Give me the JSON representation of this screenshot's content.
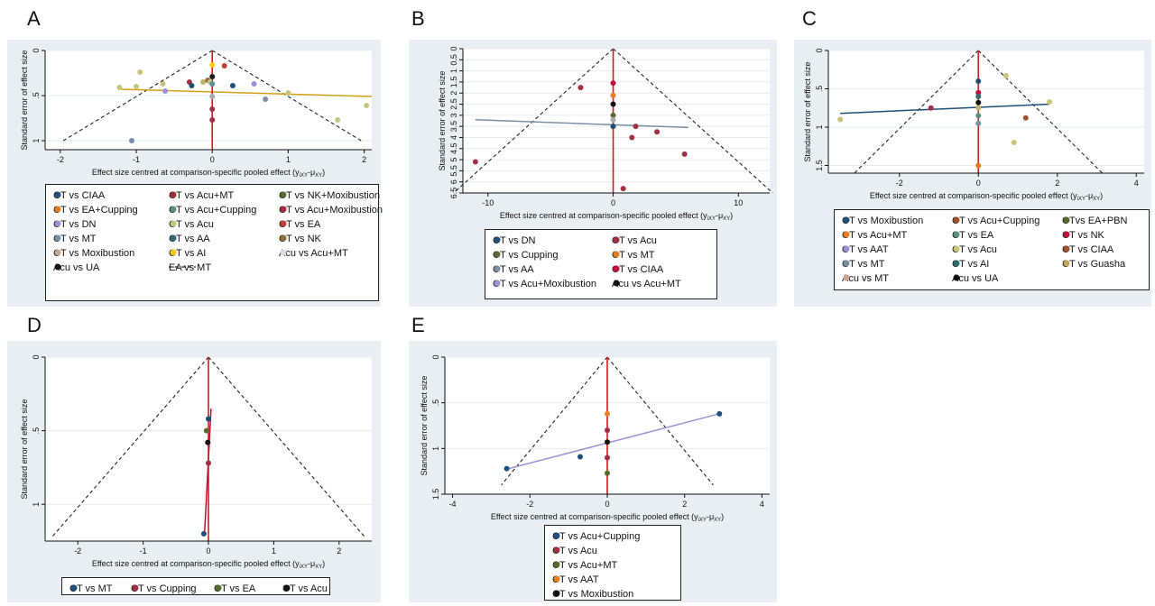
{
  "panel_labels": [
    "A",
    "B",
    "C",
    "D",
    "E"
  ],
  "chart_data": [
    {
      "panel": "A",
      "type": "scatter",
      "xlabel": "Effect size centred at comparison-specific pooled effect (y",
      "xlabel_sub": "iXY",
      "xlabel_mid": "-μ",
      "xlabel_sub2": "XY",
      "xlabel_end": ")",
      "ylabel": "Standard error of effect size",
      "xlim": [
        -2.2,
        2.1
      ],
      "ylim": [
        0,
        1.1
      ],
      "xticks": [
        -2,
        -1,
        0,
        1,
        2
      ],
      "xtick_labels": [
        "-2",
        "-1",
        "0",
        "1",
        "2"
      ],
      "yticks": [
        0,
        0.5,
        1
      ],
      "ytick_labels": [
        "0",
        ".5",
        "1"
      ],
      "funnel_se": 1.0,
      "funnel_x": 1.96,
      "regression_line": {
        "color": "#d4a017",
        "x": [
          -1.2,
          2.1
        ],
        "y": [
          0.43,
          0.51
        ]
      },
      "points": [
        {
          "x": -1.22,
          "y": 0.41,
          "c": "#c8c47a"
        },
        {
          "x": -1.0,
          "y": 0.4,
          "c": "#c8c47a"
        },
        {
          "x": -0.95,
          "y": 0.24,
          "c": "#c8c47a"
        },
        {
          "x": -0.65,
          "y": 0.37,
          "c": "#c8c47a"
        },
        {
          "x": -0.62,
          "y": 0.45,
          "c": "#9f8fd6"
        },
        {
          "x": -0.3,
          "y": 0.35,
          "c": "#a03042"
        },
        {
          "x": -0.27,
          "y": 0.39,
          "c": "#1f4e79"
        },
        {
          "x": -0.12,
          "y": 0.35,
          "c": "#bfb468"
        },
        {
          "x": -0.06,
          "y": 0.33,
          "c": "#8c6d3f"
        },
        {
          "x": -0.03,
          "y": 0.35,
          "c": "#c8c47a"
        },
        {
          "x": 0.0,
          "y": 0.16,
          "c": "#f6c90e"
        },
        {
          "x": 0.0,
          "y": 0.29,
          "c": "#1a1a1a"
        },
        {
          "x": 0.0,
          "y": 0.37,
          "c": "#5a8f9a"
        },
        {
          "x": 0.0,
          "y": 0.51,
          "c": "#aaaaaa"
        },
        {
          "x": 0.0,
          "y": 0.65,
          "c": "#a03042"
        },
        {
          "x": 0.0,
          "y": 0.77,
          "c": "#a03042"
        },
        {
          "x": 0.16,
          "y": 0.17,
          "c": "#c0403a"
        },
        {
          "x": 0.27,
          "y": 0.39,
          "c": "#1f4e79"
        },
        {
          "x": 0.55,
          "y": 0.37,
          "c": "#9f8fd6"
        },
        {
          "x": 0.7,
          "y": 0.54,
          "c": "#7a8fa6"
        },
        {
          "x": 1.0,
          "y": 0.47,
          "c": "#c8c47a"
        },
        {
          "x": 1.65,
          "y": 0.77,
          "c": "#c8c47a"
        },
        {
          "x": 2.03,
          "y": 0.61,
          "c": "#c8c47a"
        },
        {
          "x": -1.06,
          "y": 1.0,
          "c": "#7a8fa6"
        }
      ],
      "legend_cols": 3,
      "legend": [
        {
          "label": "CT vs CIAA",
          "c": "#1f4e79"
        },
        {
          "label": "CT vs Acu+MT",
          "c": "#a03042"
        },
        {
          "label": "CT vs NK+Moxibustion",
          "c": "#556b2f"
        },
        {
          "label": "CT vs EA+Cupping",
          "c": "#e67e22"
        },
        {
          "label": "CT vs Acu+Cupping",
          "c": "#5a8f7a"
        },
        {
          "label": "CT vs Acu+Moxibustion",
          "c": "#a03042"
        },
        {
          "label": "CT vs DN",
          "c": "#9f8fd6"
        },
        {
          "label": "CT vs Acu",
          "c": "#c8c47a"
        },
        {
          "label": "CT vs EA",
          "c": "#c0403a"
        },
        {
          "label": "CT vs MT",
          "c": "#7a8fa6"
        },
        {
          "label": "CT vs AA",
          "c": "#2e6b6b"
        },
        {
          "label": "CT vs NK",
          "c": "#8c6d3f"
        },
        {
          "label": "CT vs Moxibustion",
          "c": "#c9a49a"
        },
        {
          "label": "CT vs AI",
          "c": "#f6c90e"
        },
        {
          "label": "Acu vs Acu+MT",
          "c": "#d6dde6"
        },
        {
          "label": "Acu vs UA",
          "c": "#111111"
        },
        {
          "label": "EA vs MT",
          "c": "#222222",
          "dash": true
        }
      ]
    },
    {
      "panel": "B",
      "type": "scatter",
      "xlabel": "Effect size centred at comparison-specific pooled effect (y",
      "xlabel_sub": "iXY",
      "xlabel_mid": "-μ",
      "xlabel_sub2": "XY",
      "xlabel_end": ")",
      "ylabel": "Standard error of effect size",
      "xlim": [
        -12,
        12.5
      ],
      "ylim": [
        0,
        6.5
      ],
      "xticks": [
        -10,
        0,
        10
      ],
      "xtick_labels": [
        "-10",
        "0",
        "10"
      ],
      "yticks": [
        0,
        0.5,
        1,
        1.5,
        2,
        2.5,
        3,
        3.5,
        4,
        4.5,
        5,
        5.5,
        6,
        6.5
      ],
      "ytick_labels": [
        "0",
        "0.5",
        "1",
        "1.5",
        "2",
        "2.5",
        "3",
        "3.5",
        "4",
        "4.5",
        "5",
        "5.5",
        "6",
        "6.5"
      ],
      "funnel_se": 6.5,
      "funnel_x": 12.74,
      "regression_line": {
        "color": "#7a8fa6",
        "x": [
          -11,
          6
        ],
        "y": [
          3.2,
          3.55
        ]
      },
      "points": [
        {
          "x": -2.6,
          "y": 1.75,
          "c": "#a03042"
        },
        {
          "x": 0.0,
          "y": 1.55,
          "c": "#c0103a"
        },
        {
          "x": 0.0,
          "y": 2.1,
          "c": "#e67e22"
        },
        {
          "x": 0.0,
          "y": 2.5,
          "c": "#111111"
        },
        {
          "x": 0.0,
          "y": 3.0,
          "c": "#556b2f"
        },
        {
          "x": 0.0,
          "y": 3.2,
          "c": "#aaaaaa"
        },
        {
          "x": 0.0,
          "y": 3.5,
          "c": "#1f4e79"
        },
        {
          "x": 1.5,
          "y": 4.0,
          "c": "#a03042"
        },
        {
          "x": 1.8,
          "y": 3.5,
          "c": "#a03042"
        },
        {
          "x": 3.5,
          "y": 3.75,
          "c": "#a03042"
        },
        {
          "x": 5.7,
          "y": 4.75,
          "c": "#a03042"
        },
        {
          "x": -11.0,
          "y": 5.1,
          "c": "#a03042"
        },
        {
          "x": 0.8,
          "y": 6.3,
          "c": "#a03042"
        }
      ],
      "legend_cols": 2,
      "legend": [
        {
          "label": "CT vs DN",
          "c": "#1f4e79"
        },
        {
          "label": "CT vs Acu",
          "c": "#a03042"
        },
        {
          "label": "CT vs Cupping",
          "c": "#556b2f"
        },
        {
          "label": "CT vs MT",
          "c": "#e67e22"
        },
        {
          "label": "CT vs AA",
          "c": "#7a8fa6"
        },
        {
          "label": "CT vs CIAA",
          "c": "#c0103a"
        },
        {
          "label": "CT vs Acu+Moxibustion",
          "c": "#9f8fd6"
        },
        {
          "label": "Acu vs Acu+MT",
          "c": "#111111"
        }
      ]
    },
    {
      "panel": "C",
      "type": "scatter",
      "xlabel": "Effect size centred at comparison-specific pooled effect (y",
      "xlabel_sub": "iXY",
      "xlabel_mid": "-μ",
      "xlabel_sub2": "XY",
      "xlabel_end": ")",
      "ylabel": "Standard error of effect size",
      "xlim": [
        -3.8,
        4.2
      ],
      "ylim": [
        0,
        1.6
      ],
      "xticks": [
        -2,
        0,
        2,
        4
      ],
      "xtick_labels": [
        "-2",
        "0",
        "2",
        "4"
      ],
      "yticks": [
        0,
        0.5,
        1,
        1.5
      ],
      "ytick_labels": [
        "0",
        ".5",
        "1",
        "1.5"
      ],
      "funnel_se": 1.6,
      "funnel_x": 3.14,
      "regression_line": {
        "color": "#1f4e79",
        "x": [
          -3.5,
          1.8
        ],
        "y": [
          0.82,
          0.7
        ]
      },
      "points": [
        {
          "x": -3.5,
          "y": 0.9,
          "c": "#c8c47a"
        },
        {
          "x": -1.2,
          "y": 0.75,
          "c": "#a03042"
        },
        {
          "x": 0.0,
          "y": 0.4,
          "c": "#1f4e79"
        },
        {
          "x": 0.0,
          "y": 0.55,
          "c": "#c0103a"
        },
        {
          "x": 0.0,
          "y": 0.6,
          "c": "#2e6b6b"
        },
        {
          "x": 0.0,
          "y": 0.68,
          "c": "#111111"
        },
        {
          "x": 0.0,
          "y": 0.75,
          "c": "#bfb468"
        },
        {
          "x": 0.0,
          "y": 0.85,
          "c": "#5a8f7a"
        },
        {
          "x": 0.0,
          "y": 0.95,
          "c": "#7a8fa6"
        },
        {
          "x": 0.0,
          "y": 1.5,
          "c": "#e67e22"
        },
        {
          "x": 0.7,
          "y": 0.33,
          "c": "#c8c47a"
        },
        {
          "x": 0.9,
          "y": 1.2,
          "c": "#c8c47a"
        },
        {
          "x": 1.2,
          "y": 0.88,
          "c": "#a0522d"
        },
        {
          "x": 1.8,
          "y": 0.67,
          "c": "#c8c47a"
        }
      ],
      "legend_cols": 3,
      "legend": [
        {
          "label": "CT vs Moxibustion",
          "c": "#1f4e79"
        },
        {
          "label": "CT vs Acu+Cupping",
          "c": "#a0522d"
        },
        {
          "label": "CTvs EA+PBN",
          "c": "#556b2f"
        },
        {
          "label": "CT vs Acu+MT",
          "c": "#e67e22"
        },
        {
          "label": "CT vs EA",
          "c": "#5a8f7a"
        },
        {
          "label": "CT vs NK",
          "c": "#c0103a"
        },
        {
          "label": "CT vs AAT",
          "c": "#9f8fd6"
        },
        {
          "label": "CT vs Acu",
          "c": "#c8c47a"
        },
        {
          "label": "CT vs CIAA",
          "c": "#a0522d"
        },
        {
          "label": "CT vs MT",
          "c": "#7a8fa6"
        },
        {
          "label": "CT vs AI",
          "c": "#2e6b6b"
        },
        {
          "label": "CT vs Guasha",
          "c": "#bfa55a"
        },
        {
          "label": "Acu vs MT",
          "c": "#c9a49a"
        },
        {
          "label": "Acu vs UA",
          "c": "#111111"
        }
      ]
    },
    {
      "panel": "D",
      "type": "scatter",
      "xlabel": "Effect size centred at comparison-specific pooled effect (y",
      "xlabel_sub": "iXY",
      "xlabel_mid": "-μ",
      "xlabel_sub2": "XY",
      "xlabel_end": ")",
      "ylabel": "Standard error of effect size",
      "xlim": [
        -2.5,
        2.5
      ],
      "ylim": [
        0,
        1.25
      ],
      "xticks": [
        -2,
        -1,
        0,
        1,
        2
      ],
      "xtick_labels": [
        "-2",
        "-1",
        "0",
        "1",
        "2"
      ],
      "yticks": [
        0,
        0.5,
        1
      ],
      "ytick_labels": [
        "0",
        ".5",
        "1"
      ],
      "funnel_se": 1.22,
      "funnel_x": 2.39,
      "regression_line": {
        "color": "#c0103a",
        "x": [
          -0.06,
          0.04
        ],
        "y": [
          1.2,
          0.35
        ]
      },
      "points": [
        {
          "x": 0.0,
          "y": 0.42,
          "c": "#1f4e79"
        },
        {
          "x": -0.03,
          "y": 0.5,
          "c": "#556b2f"
        },
        {
          "x": -0.01,
          "y": 0.58,
          "c": "#111111"
        },
        {
          "x": 0.0,
          "y": 0.72,
          "c": "#a03042"
        },
        {
          "x": -0.07,
          "y": 1.2,
          "c": "#1f4e79"
        }
      ],
      "legend_cols": 4,
      "legend": [
        {
          "label": "CT vs MT",
          "c": "#1f4e79"
        },
        {
          "label": "CT vs Cupping",
          "c": "#a03042"
        },
        {
          "label": "CT vs EA",
          "c": "#556b2f"
        },
        {
          "label": "CT vs Acu",
          "c": "#111111"
        }
      ]
    },
    {
      "panel": "E",
      "type": "scatter",
      "xlabel": "Effect size centred at comparison-specific pooled effect (y",
      "xlabel_sub": "iXY",
      "xlabel_mid": "-μ",
      "xlabel_sub2": "XY",
      "xlabel_end": ")",
      "ylabel": "Standard error of effect size",
      "xlim": [
        -4.2,
        4.2
      ],
      "ylim": [
        0,
        1.5
      ],
      "xticks": [
        -4,
        -2,
        0,
        2,
        4
      ],
      "xtick_labels": [
        "-4",
        "-2",
        "0",
        "2",
        "4"
      ],
      "yticks": [
        0,
        0.5,
        1,
        1.5
      ],
      "ytick_labels": [
        "0",
        ".5",
        "1",
        "1.5"
      ],
      "funnel_se": 1.4,
      "funnel_x": 2.74,
      "regression_line": {
        "color": "#9f8fd6",
        "x": [
          -2.55,
          2.9
        ],
        "y": [
          1.22,
          0.62
        ]
      },
      "points": [
        {
          "x": 2.9,
          "y": 0.62,
          "c": "#1f4e79"
        },
        {
          "x": 0.0,
          "y": 0.62,
          "c": "#e67e22"
        },
        {
          "x": 0.0,
          "y": 0.8,
          "c": "#a03042"
        },
        {
          "x": 0.0,
          "y": 0.93,
          "c": "#111111"
        },
        {
          "x": 0.0,
          "y": 1.1,
          "c": "#a03042"
        },
        {
          "x": -0.7,
          "y": 1.09,
          "c": "#1f4e79"
        },
        {
          "x": 0.0,
          "y": 1.27,
          "c": "#556b2f"
        },
        {
          "x": -2.6,
          "y": 1.22,
          "c": "#1f4e79"
        }
      ],
      "legend_cols": 1,
      "legend": [
        {
          "label": "CT vs Acu+Cupping",
          "c": "#1f4e79"
        },
        {
          "label": "CT vs Acu",
          "c": "#a03042"
        },
        {
          "label": "CT vs Acu+MT",
          "c": "#556b2f"
        },
        {
          "label": "CT vs AAT",
          "c": "#e67e22"
        },
        {
          "label": "CT vs Moxibustion",
          "c": "#111111"
        }
      ]
    }
  ]
}
